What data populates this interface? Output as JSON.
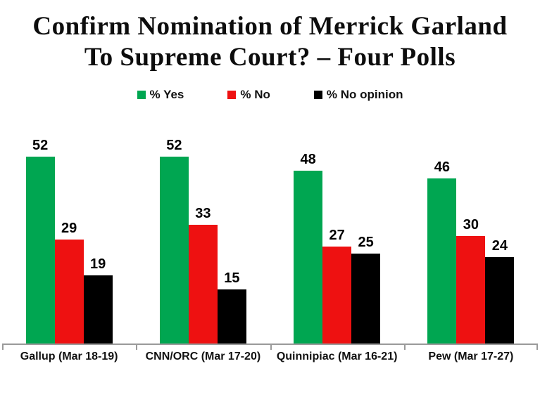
{
  "title": {
    "line1": "Confirm Nomination of Merrick Garland",
    "line2": "To Supreme Court? – Four Polls"
  },
  "legend": [
    {
      "label": "% Yes",
      "color": "#00a651"
    },
    {
      "label": "% No",
      "color": "#ee1111"
    },
    {
      "label": "% No opinion",
      "color": "#000000"
    }
  ],
  "chart_data": {
    "type": "bar",
    "title": "Confirm Nomination of Merrick Garland To Supreme Court? – Four Polls",
    "categories": [
      "Gallup (Mar 18-19)",
      "CNN/ORC (Mar 17-20)",
      "Quinnipiac (Mar 16-21)",
      "Pew (Mar 17-27)"
    ],
    "series": [
      {
        "name": "% Yes",
        "color": "#00a651",
        "values": [
          52,
          52,
          48,
          46
        ]
      },
      {
        "name": "% No",
        "color": "#ee1111",
        "values": [
          29,
          33,
          27,
          30
        ]
      },
      {
        "name": "% No opinion",
        "color": "#000000",
        "values": [
          19,
          15,
          25,
          24
        ]
      }
    ],
    "ylim": [
      0,
      60
    ],
    "xlabel": "",
    "ylabel": "",
    "grid": false,
    "value_labels": true,
    "legend_position": "top",
    "axis_color": "#9a9a9a"
  }
}
